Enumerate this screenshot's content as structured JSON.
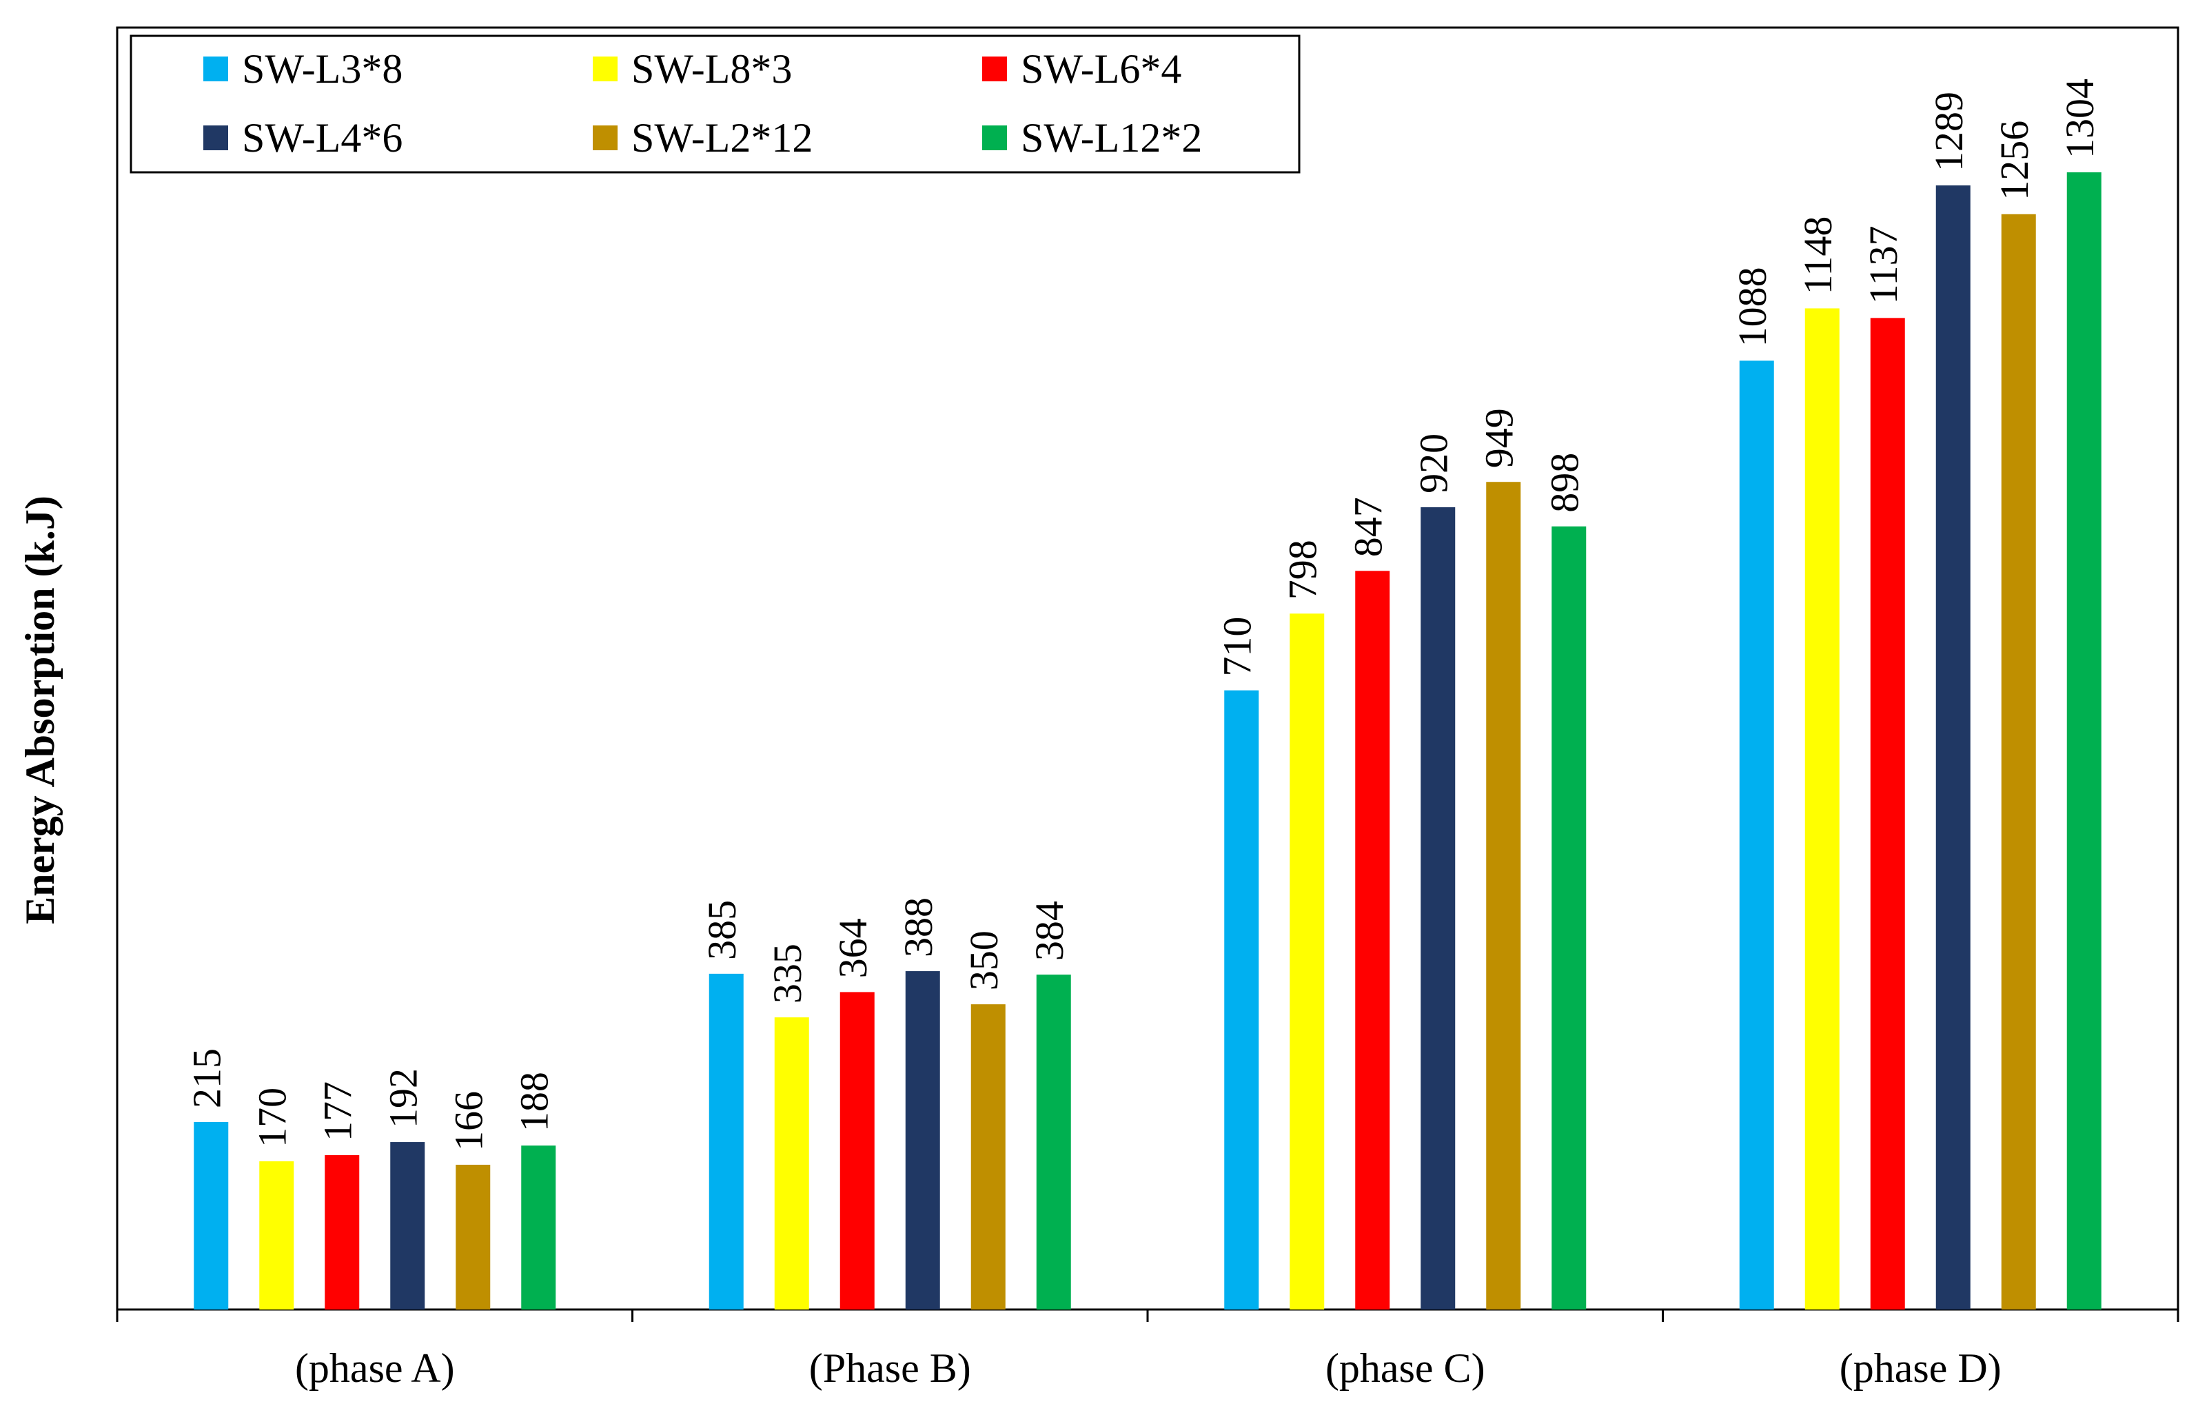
{
  "chart_data": {
    "type": "bar",
    "title": "",
    "xlabel": "",
    "ylabel": "Energy Absorption (k.J)",
    "ylim": [
      0,
      1470
    ],
    "grid": false,
    "legend_position": "top-left",
    "categories": [
      "(phase A)",
      "(Phase B)",
      "(phase C)",
      "(phase D)"
    ],
    "series": [
      {
        "name": "SW-L3*8",
        "color": "#00B0F0",
        "values": [
          215,
          385,
          710,
          1088
        ]
      },
      {
        "name": "SW-L8*3",
        "color": "#FFFF00",
        "values": [
          170,
          335,
          798,
          1148
        ]
      },
      {
        "name": "SW-L6*4",
        "color": "#FF0000",
        "values": [
          177,
          364,
          847,
          1137
        ]
      },
      {
        "name": "SW-L4*6",
        "color": "#203864",
        "values": [
          192,
          388,
          920,
          1289
        ]
      },
      {
        "name": "SW-L2*12",
        "color": "#BF8F00",
        "values": [
          166,
          350,
          949,
          1256
        ]
      },
      {
        "name": "SW-L12*2",
        "color": "#00B050",
        "values": [
          188,
          384,
          898,
          1304
        ]
      }
    ]
  }
}
